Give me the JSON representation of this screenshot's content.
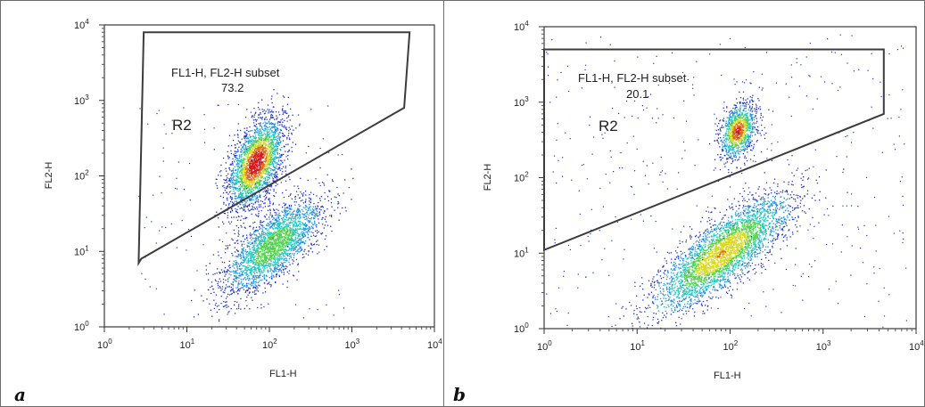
{
  "chart_data": [
    {
      "type": "scatter",
      "panel_label": "a",
      "xlabel": "FL1-H",
      "ylabel": "FL2-H",
      "x_scale": "log",
      "y_scale": "log",
      "xlim": [
        1,
        10000
      ],
      "ylim": [
        1,
        10000
      ],
      "x_ticks": [
        "10^0",
        "10^1",
        "10^2",
        "10^3",
        "10^4"
      ],
      "y_ticks": [
        "10^0",
        "10^1",
        "10^2",
        "10^3",
        "10^4"
      ],
      "gate": {
        "label": "FL1-H, FL2-H subset",
        "percent": "73.2",
        "region": "R2",
        "vertices": [
          [
            3,
            8000
          ],
          [
            5000,
            8000
          ],
          [
            4300,
            800
          ],
          [
            2.8,
            8
          ],
          [
            2.6,
            7
          ]
        ]
      },
      "populations": [
        {
          "name": "",
          "x_center": 68,
          "y_center": 150,
          "spread": "dense",
          "inside_gate": true
        },
        {
          "name": "",
          "x_center": 110,
          "y_center": 12,
          "spread": "diffuse",
          "inside_gate": false
        }
      ],
      "colormap": [
        "#1f2fd0",
        "#1d8fe0",
        "#20c8c0",
        "#4fd04a",
        "#d8d820",
        "#e06a18",
        "#d81818"
      ]
    },
    {
      "type": "scatter",
      "panel_label": "b",
      "xlabel": "FL1-H",
      "ylabel": "FL2-H",
      "x_scale": "log",
      "y_scale": "log",
      "xlim": [
        1,
        10000
      ],
      "ylim": [
        1,
        10000
      ],
      "x_ticks": [
        "10^0",
        "10^1",
        "10^2",
        "10^3",
        "10^4"
      ],
      "y_ticks": [
        "10^0",
        "10^1",
        "10^2",
        "10^3",
        "10^4"
      ],
      "gate": {
        "label": "FL1-H, FL2-H subset",
        "percent": "20.1",
        "region": "R2",
        "vertices": [
          [
            1,
            5000
          ],
          [
            4500,
            5000
          ],
          [
            4500,
            700
          ],
          [
            1,
            11
          ]
        ]
      },
      "populations": [
        {
          "name": "",
          "x_center": 120,
          "y_center": 420,
          "spread": "tight",
          "inside_gate": true
        },
        {
          "name": "",
          "x_center": 80,
          "y_center": 10,
          "spread": "elongated",
          "inside_gate": false
        }
      ],
      "colormap": [
        "#1f2fd0",
        "#1d8fe0",
        "#20c8c0",
        "#4fd04a",
        "#d8d820",
        "#e06a18",
        "#d81818"
      ]
    }
  ]
}
